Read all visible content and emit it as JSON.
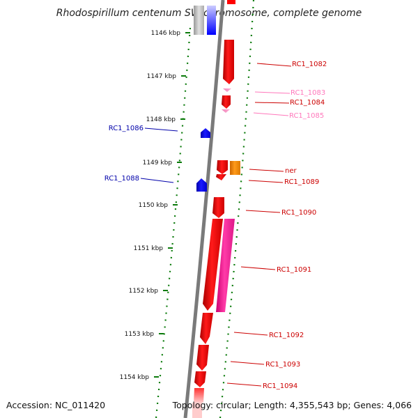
{
  "title": "Rhodospirillum centenum SW chromosome, complete genome",
  "footer": {
    "accession": "Accession: NC_011420",
    "topology": "Topology: circular; Length: 4,355,543 bp; Genes: 4,066"
  },
  "colors": {
    "forward_gene": "#ff0000",
    "reverse_gene": "#0000ff",
    "light_pink_gene": "#ff88cc",
    "magenta_gene": "#ff2a9a",
    "orange_gene": "#ff8c00",
    "pseudo_gene": "#bbbbbb",
    "backbone": "#888888",
    "scale_ticks": "#008000",
    "label_red": "#cc0000",
    "label_blue": "#0000aa",
    "label_pink": "#ff77bb"
  },
  "scale": {
    "unit": "kbp",
    "ticks": [
      {
        "kbp": 1146,
        "label": "1146 kbp"
      },
      {
        "kbp": 1147,
        "label": "1147 kbp"
      },
      {
        "kbp": 1148,
        "label": "1148 kbp"
      },
      {
        "kbp": 1149,
        "label": "1149 kbp"
      },
      {
        "kbp": 1150,
        "label": "1150 kbp"
      },
      {
        "kbp": 1151,
        "label": "1151 kbp"
      },
      {
        "kbp": 1152,
        "label": "1152 kbp"
      },
      {
        "kbp": 1153,
        "label": "1153 kbp"
      },
      {
        "kbp": 1154,
        "label": "1154 kbp"
      }
    ]
  },
  "genes": [
    {
      "label": "RC1_1082",
      "strand": "+",
      "color": "red"
    },
    {
      "label": "RC1_1083",
      "strand": "+",
      "color": "light_pink"
    },
    {
      "label": "RC1_1084",
      "strand": "+",
      "color": "red"
    },
    {
      "label": "RC1_1085",
      "strand": "+",
      "color": "light_pink"
    },
    {
      "label": "RC1_1086",
      "strand": "-",
      "color": "blue"
    },
    {
      "label": "RC1_1088",
      "strand": "-",
      "color": "blue"
    },
    {
      "label": "ner",
      "strand": "+",
      "color": "orange"
    },
    {
      "label": "RC1_1089",
      "strand": "+",
      "color": "red"
    },
    {
      "label": "RC1_1090",
      "strand": "+",
      "color": "red"
    },
    {
      "label": "RC1_1091",
      "strand": "+",
      "color": "magenta"
    },
    {
      "label": "RC1_1092",
      "strand": "+",
      "color": "red"
    },
    {
      "label": "RC1_1093",
      "strand": "+",
      "color": "red"
    },
    {
      "label": "RC1_1094",
      "strand": "+",
      "color": "red"
    }
  ]
}
